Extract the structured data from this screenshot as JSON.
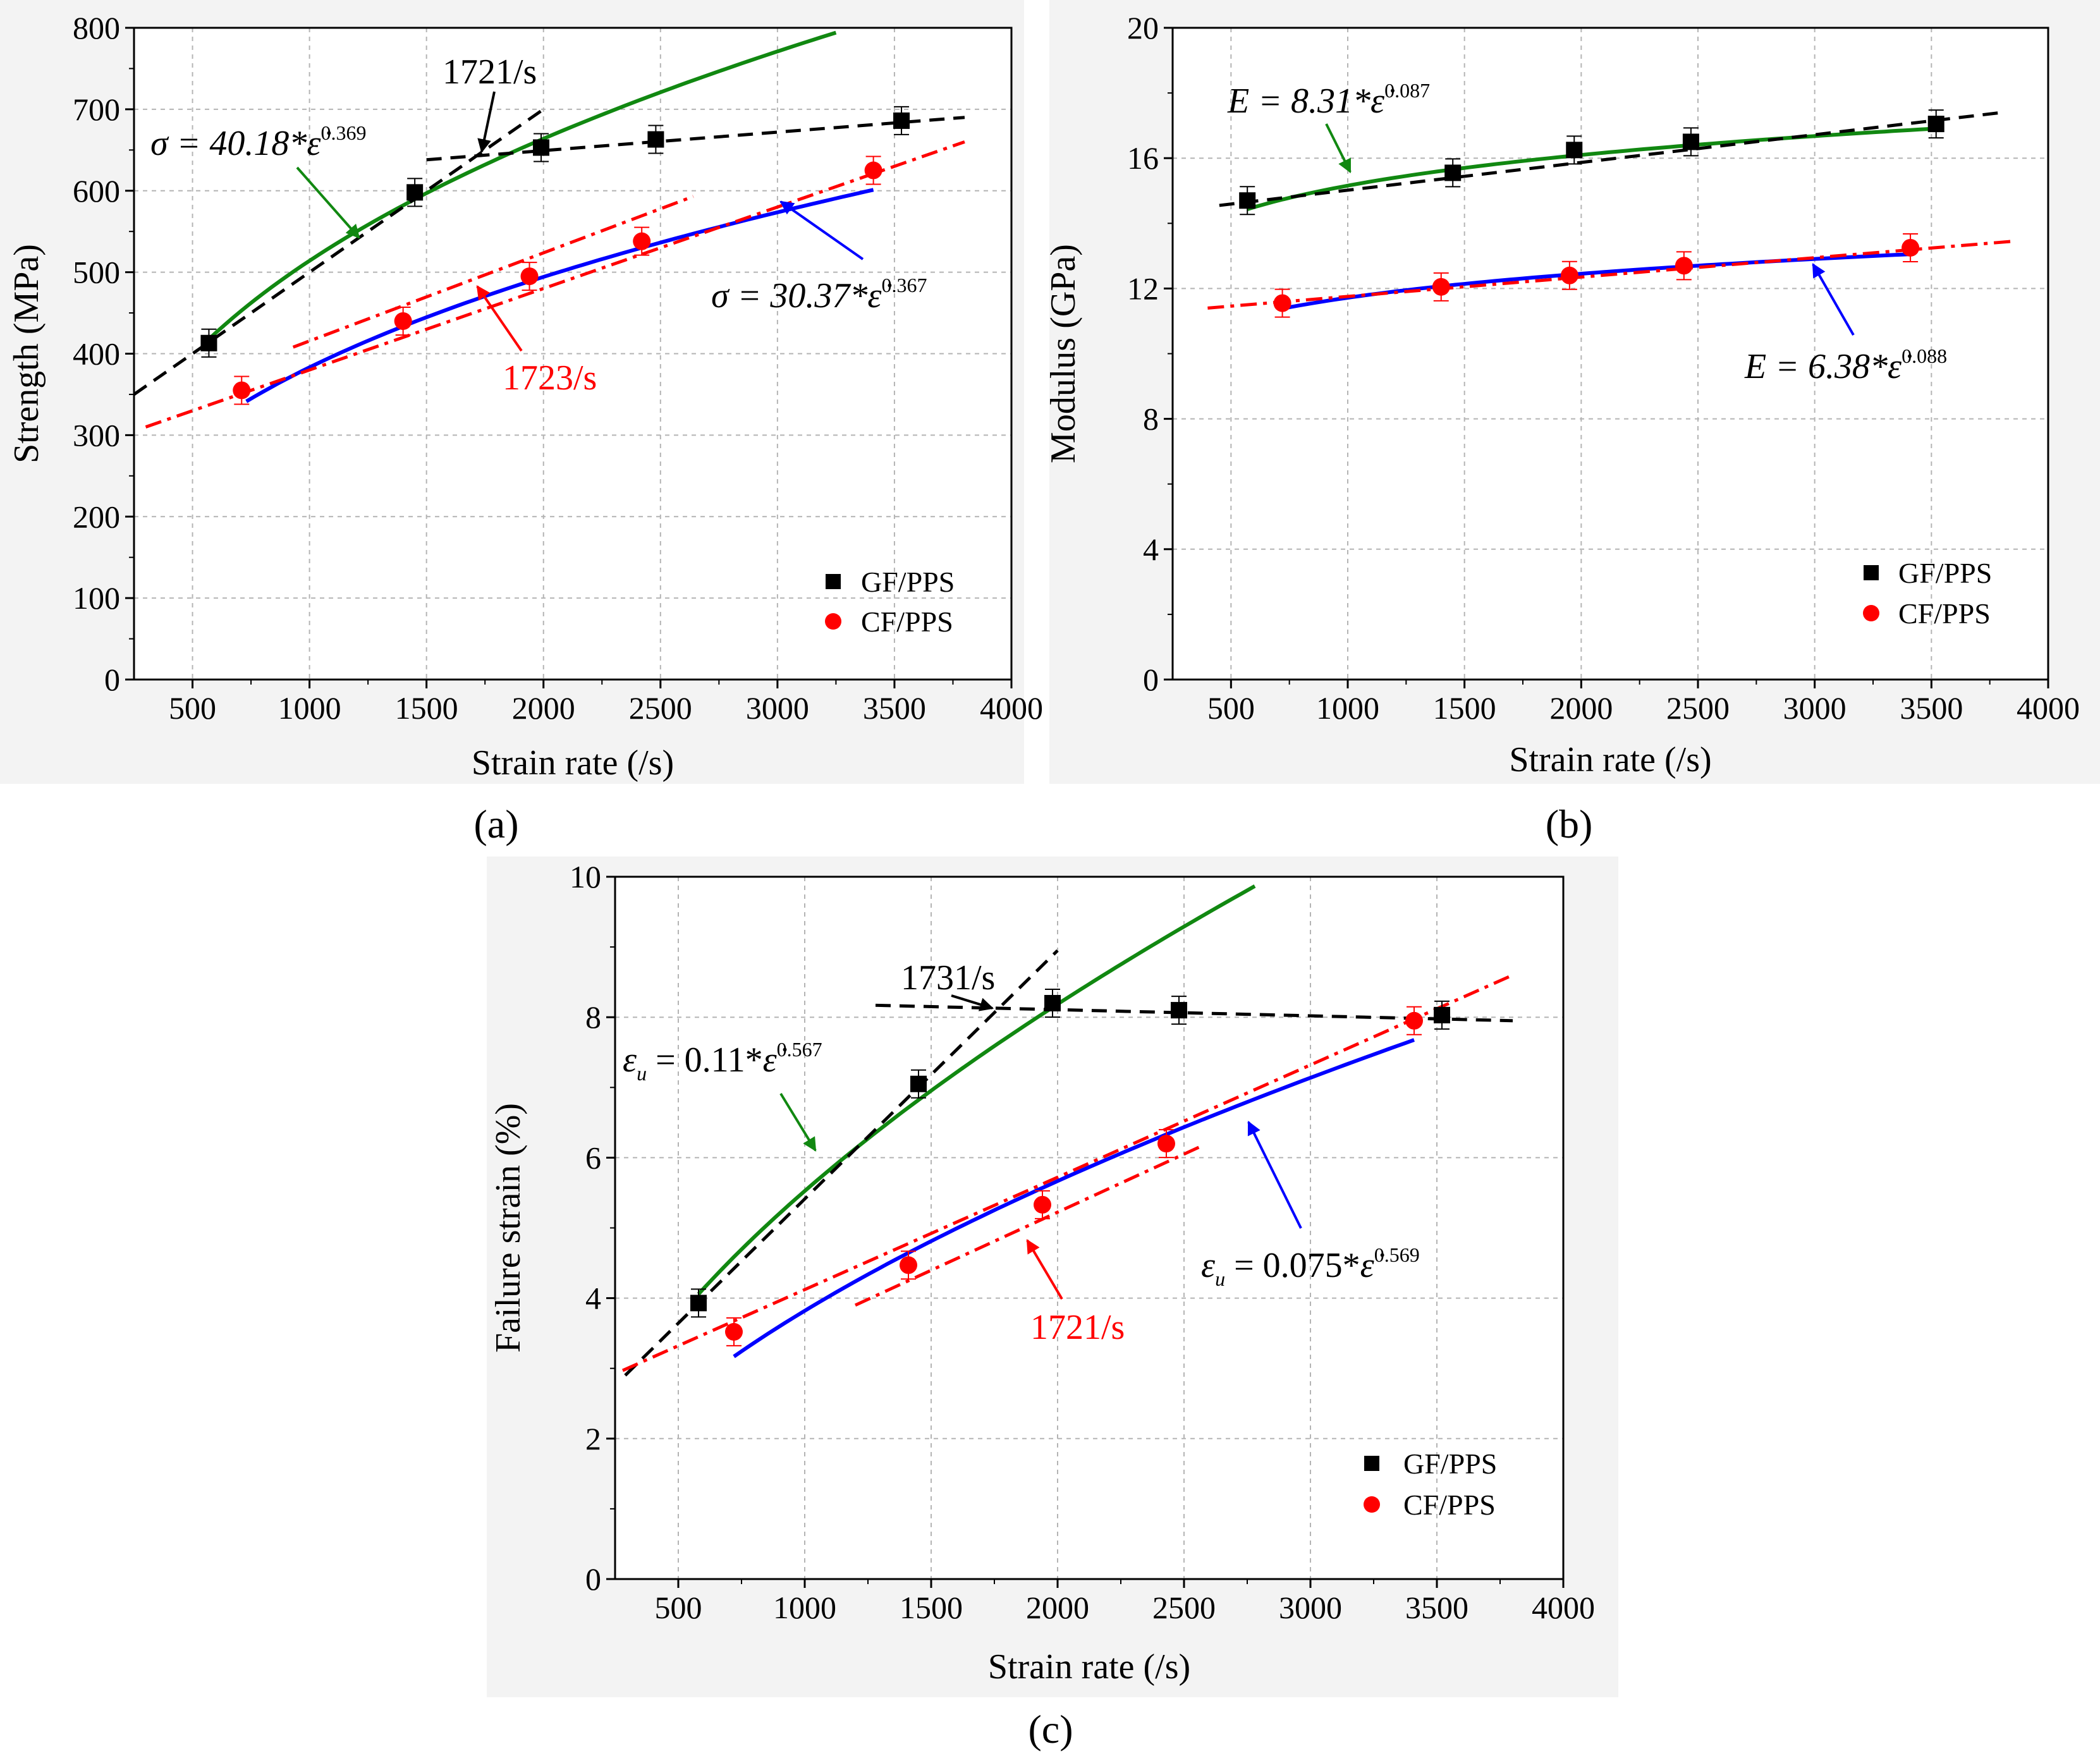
{
  "colors": {
    "gf_marker": "#000000",
    "cf_marker": "#ff0000",
    "gf_power_fit": "#118811",
    "cf_power_fit": "#0000ff",
    "gf_linear_fit": "#000000",
    "cf_linear_fit": "#ff0000",
    "grid": "#b4b4b4"
  },
  "chart_data": [
    {
      "id": "a",
      "panel_label": "(a)",
      "type": "scatter",
      "xlabel": "Strain rate (/s)",
      "ylabel": "Strength (MPa)",
      "xlim": [
        250,
        4000
      ],
      "ylim": [
        0,
        800
      ],
      "xticks": [
        500,
        1000,
        1500,
        2000,
        2500,
        3000,
        3500,
        4000
      ],
      "yticks": [
        0,
        100,
        200,
        300,
        400,
        500,
        600,
        700,
        800
      ],
      "grid": true,
      "legend": {
        "position": "bottom-right",
        "entries": [
          "GF/PPS",
          "CF/PPS"
        ]
      },
      "series": [
        {
          "name": "GF/PPS",
          "marker": "square",
          "x": [
            570,
            1450,
            1990,
            2480,
            3530
          ],
          "y": [
            413,
            598,
            653,
            663,
            686
          ]
        },
        {
          "name": "CF/PPS",
          "marker": "circle",
          "x": [
            710,
            1400,
            1940,
            2420,
            3410
          ],
          "y": [
            355,
            440,
            495,
            538,
            625
          ]
        }
      ],
      "fits": [
        {
          "series": "GF/PPS",
          "kind": "power",
          "a": 40.18,
          "b": 0.369,
          "x_range": [
            570,
            3250
          ]
        },
        {
          "series": "CF/PPS",
          "kind": "power",
          "a": 30.37,
          "b": 0.367,
          "x_range": [
            730,
            3410
          ]
        },
        {
          "series": "GF/PPS",
          "kind": "linear",
          "segments": [
            {
              "x": [
                250,
                2000
              ],
              "y": [
                350,
                700
              ]
            },
            {
              "x": [
                1500,
                3800
              ],
              "y": [
                638,
                690
              ]
            }
          ]
        },
        {
          "series": "CF/PPS",
          "kind": "linear",
          "segments": [
            {
              "x": [
                300,
                3800
              ],
              "y": [
                310,
                660
              ]
            },
            {
              "x": [
                930,
                2640
              ],
              "y": [
                408,
                593
              ]
            }
          ]
        }
      ],
      "annotations": {
        "equation_gf": {
          "prefix": "σ = 40.18*",
          "var": "ε̇",
          "exp": "0.369"
        },
        "equation_cf": {
          "prefix": "σ = 30.37*",
          "var": "ε̇",
          "exp": "0.367"
        },
        "transition_gf": "1721/s",
        "transition_cf": "1723/s"
      }
    },
    {
      "id": "b",
      "panel_label": "(b)",
      "type": "scatter",
      "xlabel": "Strain rate (/s)",
      "ylabel": "Modulus (GPa)",
      "xlim": [
        250,
        4000
      ],
      "ylim": [
        0,
        20
      ],
      "xticks": [
        500,
        1000,
        1500,
        2000,
        2500,
        3000,
        3500,
        4000
      ],
      "yticks": [
        0,
        4,
        8,
        12,
        16,
        20
      ],
      "grid": true,
      "legend": {
        "position": "bottom-right",
        "entries": [
          "GF/PPS",
          "CF/PPS"
        ]
      },
      "series": [
        {
          "name": "GF/PPS",
          "marker": "square",
          "x": [
            570,
            1450,
            1970,
            2470,
            3520
          ],
          "y": [
            14.7,
            15.55,
            16.25,
            16.5,
            17.05
          ]
        },
        {
          "name": "CF/PPS",
          "marker": "circle",
          "x": [
            720,
            1400,
            1950,
            2440,
            3410
          ],
          "y": [
            11.55,
            12.05,
            12.4,
            12.7,
            13.25
          ]
        }
      ],
      "fits": [
        {
          "series": "GF/PPS",
          "kind": "power",
          "a": 8.31,
          "b": 0.087,
          "x_range": [
            570,
            3520
          ]
        },
        {
          "series": "CF/PPS",
          "kind": "power",
          "a": 6.38,
          "b": 0.088,
          "x_range": [
            720,
            3410
          ]
        },
        {
          "series": "GF/PPS",
          "kind": "linear",
          "segments": [
            {
              "x": [
                450,
                3800
              ],
              "y": [
                14.55,
                17.4
              ]
            }
          ]
        },
        {
          "series": "CF/PPS",
          "kind": "linear",
          "segments": [
            {
              "x": [
                400,
                3850
              ],
              "y": [
                11.4,
                13.45
              ]
            }
          ]
        }
      ],
      "annotations": {
        "equation_gf": {
          "prefix": "E = 8.31*",
          "var": "ε̇",
          "exp": "0.087"
        },
        "equation_cf": {
          "prefix": "E = 6.38*",
          "var": "ε̇",
          "exp": "0.088"
        }
      }
    },
    {
      "id": "c",
      "panel_label": "(c)",
      "type": "scatter",
      "xlabel": "Strain rate (/s)",
      "ylabel": "Failure strain (%)",
      "xlim": [
        250,
        4000
      ],
      "ylim": [
        0,
        10
      ],
      "xticks": [
        500,
        1000,
        1500,
        2000,
        2500,
        3000,
        3500,
        4000
      ],
      "yticks": [
        0,
        2,
        4,
        6,
        8,
        10
      ],
      "grid": true,
      "legend": {
        "position": "bottom-right",
        "entries": [
          "GF/PPS",
          "CF/PPS"
        ]
      },
      "series": [
        {
          "name": "GF/PPS",
          "marker": "square",
          "x": [
            580,
            1450,
            1980,
            2480,
            3520
          ],
          "y": [
            3.93,
            7.05,
            8.2,
            8.1,
            8.03
          ]
        },
        {
          "name": "CF/PPS",
          "marker": "circle",
          "x": [
            720,
            1410,
            1940,
            2430,
            3410
          ],
          "y": [
            3.52,
            4.47,
            5.33,
            6.2,
            7.95
          ]
        }
      ],
      "fits": [
        {
          "series": "GF/PPS",
          "kind": "power",
          "a": 0.11,
          "b": 0.567,
          "x_range": [
            580,
            2780
          ]
        },
        {
          "series": "CF/PPS",
          "kind": "power",
          "a": 0.075,
          "b": 0.569,
          "x_range": [
            720,
            3410
          ]
        },
        {
          "series": "GF/PPS",
          "kind": "linear",
          "segments": [
            {
              "x": [
                290,
                2000
              ],
              "y": [
                2.9,
                8.95
              ]
            },
            {
              "x": [
                1280,
                3800
              ],
              "y": [
                8.17,
                7.95
              ]
            }
          ]
        },
        {
          "series": "CF/PPS",
          "kind": "linear",
          "segments": [
            {
              "x": [
                280,
                3800
              ],
              "y": [
                2.97,
                8.6
              ]
            },
            {
              "x": [
                1200,
                2560
              ],
              "y": [
                3.9,
                6.15
              ]
            }
          ]
        }
      ],
      "annotations": {
        "equation_gf": {
          "prefix": "ε",
          "sub": "u",
          "prefix2": " = 0.11*",
          "var": "ε̇",
          "exp": "0.567"
        },
        "equation_cf": {
          "prefix": "ε",
          "sub": "u",
          "prefix2": " = 0.075*",
          "var": "ε̇",
          "exp": "0.569"
        },
        "transition_gf": "1731/s",
        "transition_cf": "1721/s"
      }
    }
  ]
}
